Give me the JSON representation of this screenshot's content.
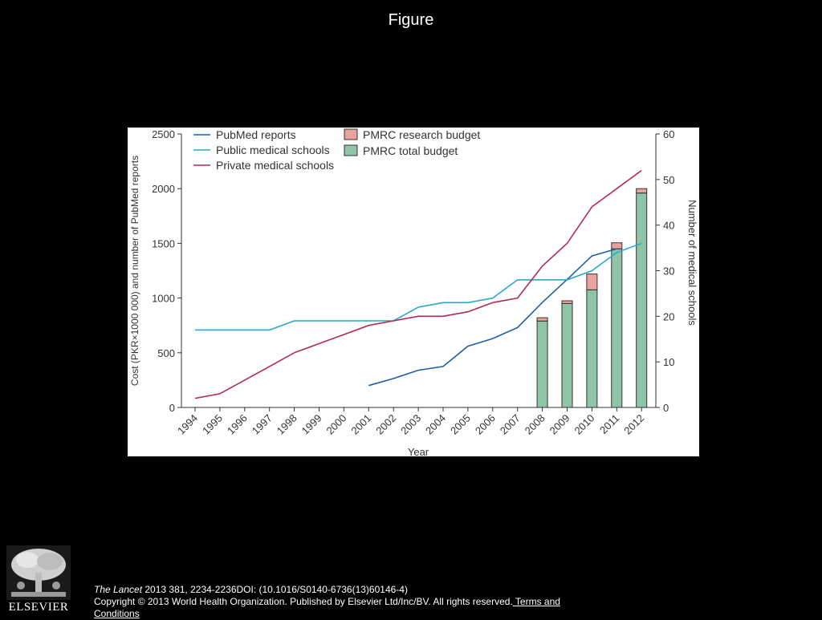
{
  "slide": {
    "title": "Figure"
  },
  "footer": {
    "journal": "The Lancet",
    "citation": " 2013 381, 2234-2236DOI: (10.1016/S0140-6736(13)60146-4)",
    "copyright": "Copyright © 2013 World Health Organization. Published by Elsevier Ltd/Inc/BV. All rights reserved.",
    "terms_link": " Terms and Conditions"
  },
  "logo": {
    "text": "ELSEVIER",
    "icon": "tree-logo"
  },
  "colors": {
    "pubmed": "#1f5fa6",
    "public": "#29a9cc",
    "private": "#b32b4f",
    "research": "#e8a39c",
    "total": "#8fc4a6"
  },
  "chart_data": {
    "type": "bar+line",
    "x": [
      "1994",
      "1995",
      "1996",
      "1997",
      "1998",
      "1999",
      "2000",
      "2001",
      "2002",
      "2003",
      "2004",
      "2005",
      "2006",
      "2007",
      "2008",
      "2009",
      "2010",
      "2011",
      "2012"
    ],
    "xlabel": "Year",
    "ylabel_left": "Cost (PKR×1000 000) and number of PubMed reports",
    "ylabel_right": "Number of medical schools",
    "ylim_left": [
      0,
      2500
    ],
    "ylim_right": [
      0,
      60
    ],
    "yticks_left": [
      0,
      500,
      1000,
      1500,
      2000,
      2500
    ],
    "yticks_right": [
      0,
      10,
      20,
      30,
      40,
      50,
      60
    ],
    "legend_position": "top-left",
    "series": [
      {
        "name": "PubMed reports",
        "type": "line",
        "axis": "left",
        "values": [
          null,
          null,
          null,
          null,
          null,
          null,
          null,
          200,
          265,
          340,
          375,
          560,
          630,
          730,
          960,
          1170,
          1385,
          1450,
          null
        ]
      },
      {
        "name": "Public medical schools",
        "type": "line",
        "axis": "right",
        "values": [
          17,
          17,
          17,
          17,
          19,
          19,
          19,
          19,
          19,
          22,
          23,
          23,
          24,
          28,
          28,
          28,
          30,
          34,
          36
        ]
      },
      {
        "name": "Private medical schools",
        "type": "line",
        "axis": "right",
        "values": [
          2,
          3,
          6,
          9,
          12,
          14,
          16,
          18,
          19,
          20,
          20,
          21,
          23,
          24,
          31,
          36,
          44,
          48,
          52
        ]
      },
      {
        "name": "PMRC research budget",
        "type": "bar-stack-top",
        "axis": "left",
        "values": [
          null,
          null,
          null,
          null,
          null,
          null,
          null,
          null,
          null,
          null,
          null,
          null,
          null,
          null,
          30,
          25,
          145,
          55,
          40
        ]
      },
      {
        "name": "PMRC total budget",
        "type": "bar",
        "axis": "left",
        "values": [
          null,
          null,
          null,
          null,
          null,
          null,
          null,
          null,
          null,
          null,
          null,
          null,
          null,
          null,
          790,
          950,
          1075,
          1450,
          1960
        ]
      }
    ]
  }
}
